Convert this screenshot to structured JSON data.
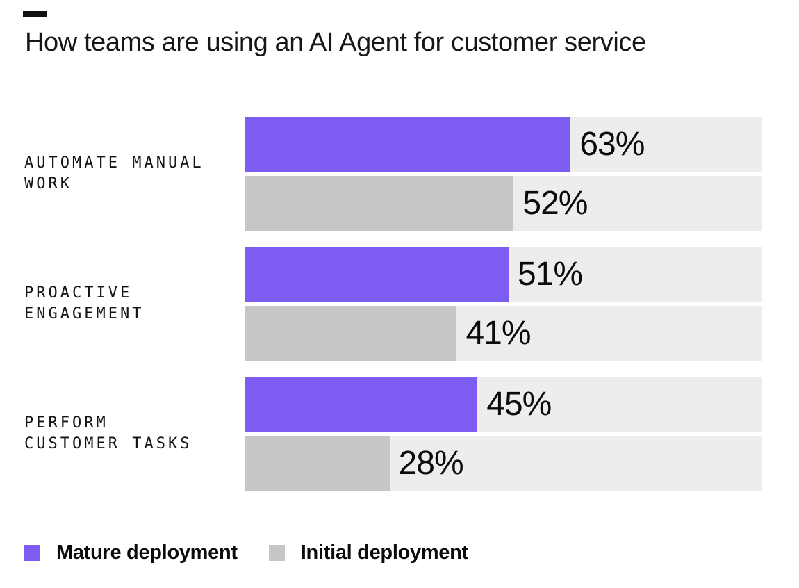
{
  "title": "How teams are using an AI Agent for customer service",
  "chart_data": {
    "type": "bar",
    "orientation": "horizontal",
    "title": "How teams are using an AI Agent for customer service",
    "categories": [
      "AUTOMATE MANUAL\nWORK",
      "PROACTIVE\nENGAGEMENT",
      "PERFORM\nCUSTOMER TASKS"
    ],
    "series": [
      {
        "name": "Mature deployment",
        "color": "#7C5CF1",
        "values": [
          63,
          51,
          45
        ],
        "labels": [
          "63%",
          "51%",
          "45%"
        ]
      },
      {
        "name": "Initial deployment",
        "color": "#C6C6C6",
        "values": [
          52,
          41,
          28
        ],
        "labels": [
          "52%",
          "41%",
          "28%"
        ]
      }
    ],
    "value_suffix": "%",
    "xlim": [
      0,
      100
    ],
    "grid": false,
    "track_color": "#EDEDED",
    "legend_position": "bottom-left"
  },
  "legend": {
    "items": [
      {
        "label": "Mature deployment",
        "color": "#7C5CF1"
      },
      {
        "label": "Initial deployment",
        "color": "#C6C6C6"
      }
    ]
  },
  "colors": {
    "accent_purple": "#7C5CF1",
    "bar_gray": "#C6C6C6",
    "track_gray": "#EDEDED",
    "text_black": "#121212",
    "background": "#FFFFFF"
  }
}
